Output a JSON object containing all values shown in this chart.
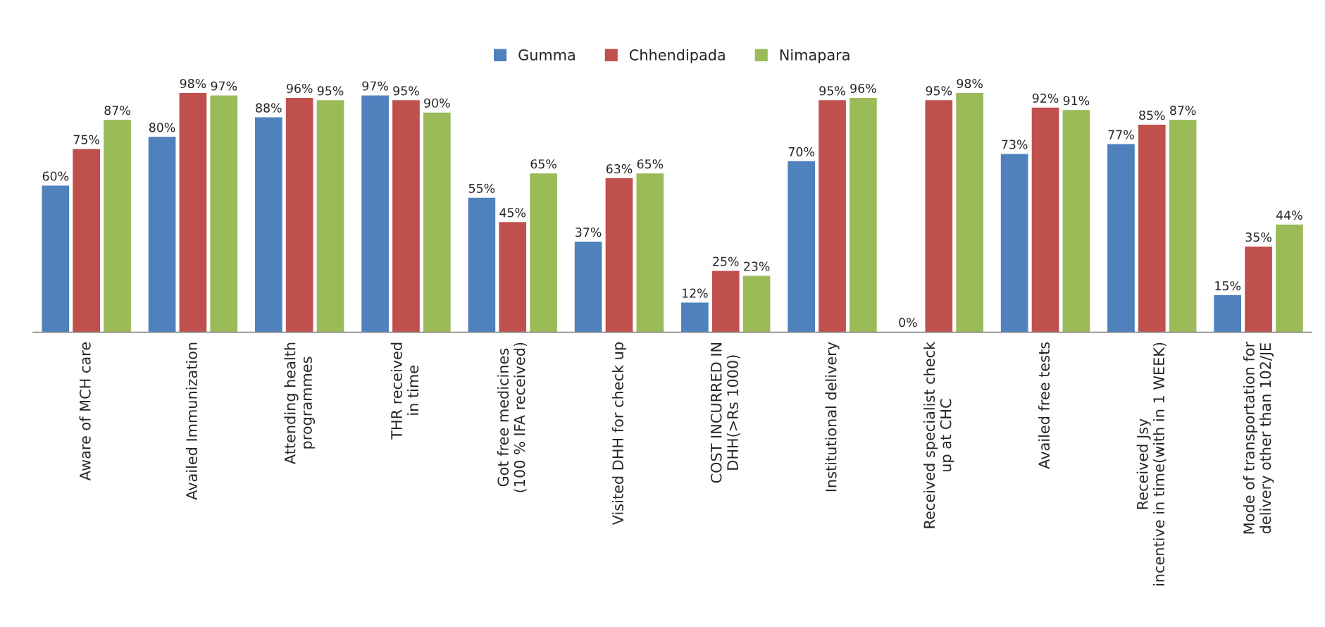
{
  "chart_data": {
    "type": "bar",
    "categories": [
      "Aware of MCH care",
      "Availed Immunization",
      "Attending health\nprogrammes",
      "THR received\nin time",
      "Got free medicines\n(100 % IFA received)",
      "Visited DHH for check up",
      "COST INCURRED IN\nDHH(>Rs 1000)",
      "Institutional delivery",
      "Received specialist check\nup at CHC",
      "Availed free tests",
      "Received Jsy\nincentive in time(with in 1 WEEK)",
      "Mode of transportation for\ndelivery other than 102/JE"
    ],
    "series": [
      {
        "name": "Gumma",
        "color": "#4f81bd",
        "values": [
          60,
          80,
          88,
          97,
          55,
          37,
          12,
          70,
          0,
          73,
          77,
          15
        ],
        "value_labels": [
          "60%",
          "80%",
          "88%",
          "97%",
          "55%",
          "37%",
          "12%",
          "70%",
          "0%",
          "73%",
          "77%",
          "15%"
        ]
      },
      {
        "name": "Chhendipada",
        "color": "#c0504d",
        "values": [
          75,
          98,
          96,
          95,
          45,
          63,
          25,
          95,
          95,
          92,
          85,
          35
        ],
        "value_labels": [
          "75%",
          "98%",
          "96%",
          "95%",
          "45%",
          "63%",
          "25%",
          "95%",
          "95%",
          "92%",
          "85%",
          "35%"
        ]
      },
      {
        "name": "Nimapara",
        "color": "#9bbb59",
        "values": [
          87,
          97,
          95,
          90,
          65,
          65,
          23,
          96,
          98,
          91,
          87,
          44
        ],
        "value_labels": [
          "87%",
          "97%",
          "95%",
          "90%",
          "65%",
          "65%",
          "23%",
          "96%",
          "98%",
          "91%",
          "87%",
          "44%"
        ]
      }
    ],
    "legend": "top",
    "grid": false,
    "tick_labels": "x"
  }
}
